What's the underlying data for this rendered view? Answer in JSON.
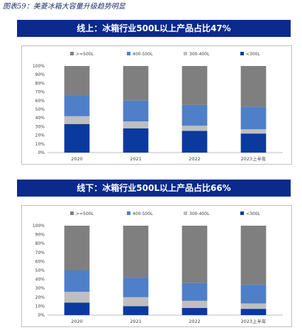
{
  "page": {
    "figure_caption": "图表59：美菱冰箱大容量升级趋势明显",
    "colors": {
      "banner_bg": "#0a2a8c",
      "banner_text": "#ffffff"
    }
  },
  "chart_data": [
    {
      "type": "bar",
      "stacked": true,
      "normalized": true,
      "title": "线上：冰箱行业500L以上产品占比47%",
      "categories": [
        "2020",
        "2021",
        "2022",
        "2023上半年"
      ],
      "legend_position": "top",
      "ylim": [
        0,
        100
      ],
      "yticks": [
        "0%",
        "10%",
        "20%",
        "30%",
        "40%",
        "50%",
        "60%",
        "70%",
        "80%",
        "90%",
        "100%"
      ],
      "series": [
        {
          "name": "<300L",
          "color": "#0a3a9e",
          "values": [
            33,
            28,
            25,
            22
          ]
        },
        {
          "name": "300-400L",
          "color": "#bfbfbf",
          "values": [
            9,
            8,
            6,
            5
          ]
        },
        {
          "name": "400-500L",
          "color": "#4f7fc9",
          "values": [
            24,
            24,
            24,
            26
          ]
        },
        {
          "name": ">=500L",
          "color": "#7f7f7f",
          "values": [
            34,
            40,
            45,
            47
          ]
        }
      ],
      "legend_order": [
        ">=500L",
        "400-500L",
        "300-400L",
        "<300L"
      ]
    },
    {
      "type": "bar",
      "stacked": true,
      "normalized": true,
      "title": "线下：冰箱行业500L以上产品占比66%",
      "categories": [
        "2020",
        "2021",
        "2022",
        "2023上半年"
      ],
      "legend_position": "top",
      "ylim": [
        0,
        100
      ],
      "yticks": [
        "0%",
        "10%",
        "20%",
        "30%",
        "40%",
        "50%",
        "60%",
        "70%",
        "80%",
        "90%",
        "100%"
      ],
      "series": [
        {
          "name": "<300L",
          "color": "#0a3a9e",
          "values": [
            14,
            10,
            8,
            7
          ]
        },
        {
          "name": "300-400L",
          "color": "#bfbfbf",
          "values": [
            12,
            10,
            8,
            6
          ]
        },
        {
          "name": "400-500L",
          "color": "#4f7fc9",
          "values": [
            24,
            22,
            20,
            21
          ]
        },
        {
          "name": ">=500L",
          "color": "#7f7f7f",
          "values": [
            50,
            58,
            64,
            66
          ]
        }
      ],
      "legend_order": [
        ">=500L",
        "400-500L",
        "300-400L",
        "<300L"
      ]
    }
  ]
}
